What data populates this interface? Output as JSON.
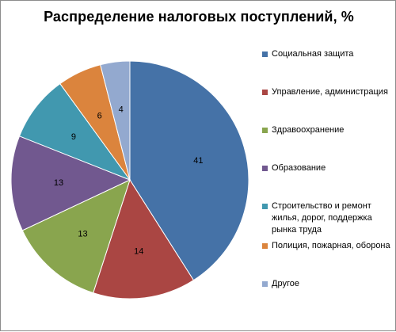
{
  "chart_data": {
    "type": "pie",
    "title": "Распределение налоговых поступлений, %",
    "categories": [
      "Социальная защита",
      "Управление, администрация",
      "Здравоохранение",
      "Образование",
      "Строительство  и ремонт жилья, дорог, поддержка рынка труда",
      "Полиция, пожарная, оборона",
      "Другое"
    ],
    "values": [
      41,
      14,
      13,
      13,
      9,
      6,
      4
    ],
    "colors": [
      "#4572a7",
      "#aa4643",
      "#89a54e",
      "#71588f",
      "#4198af",
      "#db843d",
      "#93a9cf"
    ],
    "data_labels": [
      "41",
      "14",
      "13",
      "13",
      "9",
      "6",
      "4"
    ],
    "legend_position": "right",
    "start_angle_deg": 0,
    "direction": "clockwise"
  }
}
